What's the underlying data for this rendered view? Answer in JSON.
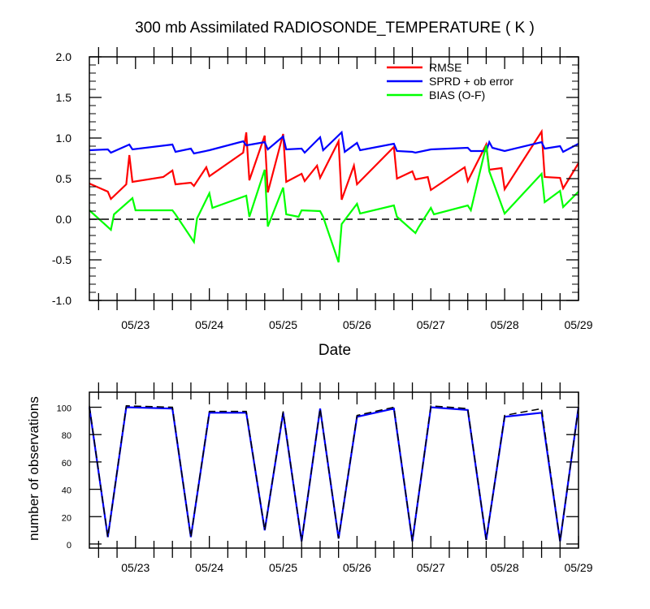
{
  "chart_data": [
    {
      "type": "line",
      "title": "300 mb Assimilated RADIOSONDE_TEMPERATURE ( K )",
      "xlabel": "Date",
      "ylabel": "",
      "x_ticks": [
        "05/23",
        "05/24",
        "05/25",
        "05/26",
        "05/27",
        "05/28",
        "05/29"
      ],
      "xlim": [
        "05/22 09:00",
        "05/29 00:00"
      ],
      "ylim": [
        -1.0,
        2.0
      ],
      "y_ticks": [
        "2.0",
        "1.5",
        "1.0",
        "0.5",
        "0.0",
        "-0.5",
        "-1.0"
      ],
      "zero_line": {
        "y": 0,
        "style": "dashed"
      },
      "legend": {
        "placement": "top-right"
      },
      "series": [
        {
          "name": "RMSE",
          "color": "#ff0000",
          "points": [
            [
              "05/22 09:00",
              0.44
            ],
            [
              "05/22 15:00",
              0.34
            ],
            [
              "05/22 16:00",
              0.25
            ],
            [
              "05/22 21:00",
              0.43
            ],
            [
              "05/22 22:00",
              0.79
            ],
            [
              "05/22 23:00",
              0.46
            ],
            [
              "05/23 09:00",
              0.52
            ],
            [
              "05/23 12:00",
              0.6
            ],
            [
              "05/23 13:00",
              0.43
            ],
            [
              "05/23 18:00",
              0.45
            ],
            [
              "05/23 19:00",
              0.41
            ],
            [
              "05/23 23:00",
              0.64
            ],
            [
              "05/24 00:00",
              0.53
            ],
            [
              "05/24 11:00",
              0.82
            ],
            [
              "05/24 12:00",
              1.07
            ],
            [
              "05/24 13:00",
              0.48
            ],
            [
              "05/24 18:00",
              1.03
            ],
            [
              "05/24 19:00",
              0.33
            ],
            [
              "05/25 00:00",
              1.05
            ],
            [
              "05/25 01:00",
              0.46
            ],
            [
              "05/25 06:00",
              0.56
            ],
            [
              "05/25 07:00",
              0.47
            ],
            [
              "05/25 11:00",
              0.66
            ],
            [
              "05/25 12:00",
              0.51
            ],
            [
              "05/25 18:00",
              0.96
            ],
            [
              "05/25 19:00",
              0.24
            ],
            [
              "05/25 23:00",
              0.66
            ],
            [
              "05/26 00:00",
              0.43
            ],
            [
              "05/26 12:00",
              0.89
            ],
            [
              "05/26 13:00",
              0.5
            ],
            [
              "05/26 18:00",
              0.59
            ],
            [
              "05/26 19:00",
              0.49
            ],
            [
              "05/26 23:00",
              0.52
            ],
            [
              "05/27 00:00",
              0.36
            ],
            [
              "05/27 11:00",
              0.64
            ],
            [
              "05/27 12:00",
              0.47
            ],
            [
              "05/27 18:00",
              0.92
            ],
            [
              "05/27 19:00",
              0.61
            ],
            [
              "05/27 23:00",
              0.63
            ],
            [
              "05/28 00:00",
              0.37
            ],
            [
              "05/28 12:00",
              1.08
            ],
            [
              "05/28 13:00",
              0.52
            ],
            [
              "05/28 18:00",
              0.51
            ],
            [
              "05/28 19:00",
              0.38
            ],
            [
              "05/29 00:00",
              0.69
            ]
          ]
        },
        {
          "name": "SPRD + ob error",
          "color": "#0000ff",
          "points": [
            [
              "05/22 09:00",
              0.85
            ],
            [
              "05/22 15:00",
              0.86
            ],
            [
              "05/22 16:00",
              0.82
            ],
            [
              "05/22 22:00",
              0.92
            ],
            [
              "05/22 23:00",
              0.86
            ],
            [
              "05/23 12:00",
              0.92
            ],
            [
              "05/23 13:00",
              0.83
            ],
            [
              "05/23 18:00",
              0.87
            ],
            [
              "05/23 19:00",
              0.81
            ],
            [
              "05/24 00:00",
              0.85
            ],
            [
              "05/24 11:00",
              0.96
            ],
            [
              "05/24 12:00",
              0.91
            ],
            [
              "05/24 18:00",
              0.95
            ],
            [
              "05/24 19:00",
              0.86
            ],
            [
              "05/25 00:00",
              1.02
            ],
            [
              "05/25 01:00",
              0.86
            ],
            [
              "05/25 06:00",
              0.87
            ],
            [
              "05/25 07:00",
              0.82
            ],
            [
              "05/25 12:00",
              1.01
            ],
            [
              "05/25 13:00",
              0.85
            ],
            [
              "05/25 19:00",
              1.07
            ],
            [
              "05/25 20:00",
              0.83
            ],
            [
              "05/26 00:00",
              0.94
            ],
            [
              "05/26 01:00",
              0.85
            ],
            [
              "05/26 12:00",
              0.93
            ],
            [
              "05/26 13:00",
              0.84
            ],
            [
              "05/26 18:00",
              0.83
            ],
            [
              "05/26 19:00",
              0.82
            ],
            [
              "05/27 00:00",
              0.86
            ],
            [
              "05/27 12:00",
              0.88
            ],
            [
              "05/27 13:00",
              0.84
            ],
            [
              "05/27 18:00",
              0.84
            ],
            [
              "05/27 19:00",
              0.95
            ],
            [
              "05/27 20:00",
              0.88
            ],
            [
              "05/28 00:00",
              0.84
            ],
            [
              "05/28 12:00",
              0.95
            ],
            [
              "05/28 13:00",
              0.87
            ],
            [
              "05/28 18:00",
              0.9
            ],
            [
              "05/28 19:00",
              0.83
            ],
            [
              "05/29 00:00",
              0.93
            ]
          ]
        },
        {
          "name": "BIAS (O-F)",
          "color": "#00ff00",
          "points": [
            [
              "05/22 09:00",
              0.11
            ],
            [
              "05/22 16:00",
              -0.13
            ],
            [
              "05/22 17:00",
              0.06
            ],
            [
              "05/22 23:00",
              0.26
            ],
            [
              "05/23 00:00",
              0.11
            ],
            [
              "05/23 12:00",
              0.11
            ],
            [
              "05/23 13:00",
              0.06
            ],
            [
              "05/23 19:00",
              -0.28
            ],
            [
              "05/23 20:00",
              0.01
            ],
            [
              "05/24 00:00",
              0.32
            ],
            [
              "05/24 01:00",
              0.14
            ],
            [
              "05/24 12:00",
              0.29
            ],
            [
              "05/24 13:00",
              0.03
            ],
            [
              "05/24 18:00",
              0.61
            ],
            [
              "05/24 19:00",
              -0.09
            ],
            [
              "05/25 00:00",
              0.39
            ],
            [
              "05/25 01:00",
              0.06
            ],
            [
              "05/25 05:00",
              0.03
            ],
            [
              "05/25 06:00",
              0.11
            ],
            [
              "05/25 12:00",
              0.1
            ],
            [
              "05/25 13:00",
              0.03
            ],
            [
              "05/25 18:00",
              -0.53
            ],
            [
              "05/25 19:00",
              -0.06
            ],
            [
              "05/26 00:00",
              0.19
            ],
            [
              "05/26 01:00",
              0.07
            ],
            [
              "05/26 12:00",
              0.17
            ],
            [
              "05/26 13:00",
              0.03
            ],
            [
              "05/26 19:00",
              -0.17
            ],
            [
              "05/26 20:00",
              -0.1
            ],
            [
              "05/27 00:00",
              0.14
            ],
            [
              "05/27 01:00",
              0.06
            ],
            [
              "05/27 12:00",
              0.17
            ],
            [
              "05/27 13:00",
              0.11
            ],
            [
              "05/27 18:00",
              0.91
            ],
            [
              "05/27 19:00",
              0.59
            ],
            [
              "05/28 00:00",
              0.07
            ],
            [
              "05/28 12:00",
              0.56
            ],
            [
              "05/28 13:00",
              0.21
            ],
            [
              "05/28 18:00",
              0.35
            ],
            [
              "05/28 19:00",
              0.15
            ],
            [
              "05/29 00:00",
              0.34
            ]
          ]
        }
      ]
    },
    {
      "type": "line",
      "title": "",
      "xlabel": "",
      "ylabel": "number of observations",
      "x_ticks": [
        "05/23",
        "05/24",
        "05/25",
        "05/26",
        "05/27",
        "05/28",
        "05/29"
      ],
      "xlim": [
        "05/22 09:00",
        "05/29 00:00"
      ],
      "ylim": [
        -3,
        111
      ],
      "y_ticks": [
        "0",
        "20",
        "40",
        "60",
        "80",
        "100"
      ],
      "series": [
        {
          "color": "#0000ff",
          "style": "solid",
          "points": [
            [
              "05/22 09:00",
              100
            ],
            [
              "05/22 15:00",
              5
            ],
            [
              "05/22 21:00",
              100
            ],
            [
              "05/23 12:00",
              99
            ],
            [
              "05/23 18:00",
              5
            ],
            [
              "05/24 00:00",
              96
            ],
            [
              "05/24 12:00",
              96
            ],
            [
              "05/24 18:00",
              10
            ],
            [
              "05/25 00:00",
              96
            ],
            [
              "05/25 06:00",
              2
            ],
            [
              "05/25 12:00",
              99
            ],
            [
              "05/25 18:00",
              4
            ],
            [
              "05/26 00:00",
              93
            ],
            [
              "05/26 12:00",
              99
            ],
            [
              "05/26 18:00",
              2
            ],
            [
              "05/27 00:00",
              100
            ],
            [
              "05/27 12:00",
              98
            ],
            [
              "05/27 18:00",
              3
            ],
            [
              "05/28 00:00",
              93
            ],
            [
              "05/28 12:00",
              96
            ],
            [
              "05/28 18:00",
              2
            ],
            [
              "05/29 00:00",
              100
            ]
          ]
        },
        {
          "color": "#000000",
          "style": "dashed",
          "points": [
            [
              "05/22 09:00",
              101
            ],
            [
              "05/22 15:00",
              5
            ],
            [
              "05/22 21:00",
              101
            ],
            [
              "05/23 12:00",
              100
            ],
            [
              "05/23 18:00",
              5
            ],
            [
              "05/24 00:00",
              97
            ],
            [
              "05/24 12:00",
              97
            ],
            [
              "05/24 18:00",
              10
            ],
            [
              "05/25 00:00",
              97
            ],
            [
              "05/25 06:00",
              2
            ],
            [
              "05/25 12:00",
              99
            ],
            [
              "05/25 18:00",
              4
            ],
            [
              "05/26 00:00",
              94
            ],
            [
              "05/26 12:00",
              100
            ],
            [
              "05/26 18:00",
              2
            ],
            [
              "05/27 00:00",
              101
            ],
            [
              "05/27 12:00",
              99
            ],
            [
              "05/27 18:00",
              3
            ],
            [
              "05/28 00:00",
              94
            ],
            [
              "05/28 12:00",
              99
            ],
            [
              "05/28 18:00",
              2
            ],
            [
              "05/29 00:00",
              100
            ]
          ]
        }
      ]
    }
  ]
}
